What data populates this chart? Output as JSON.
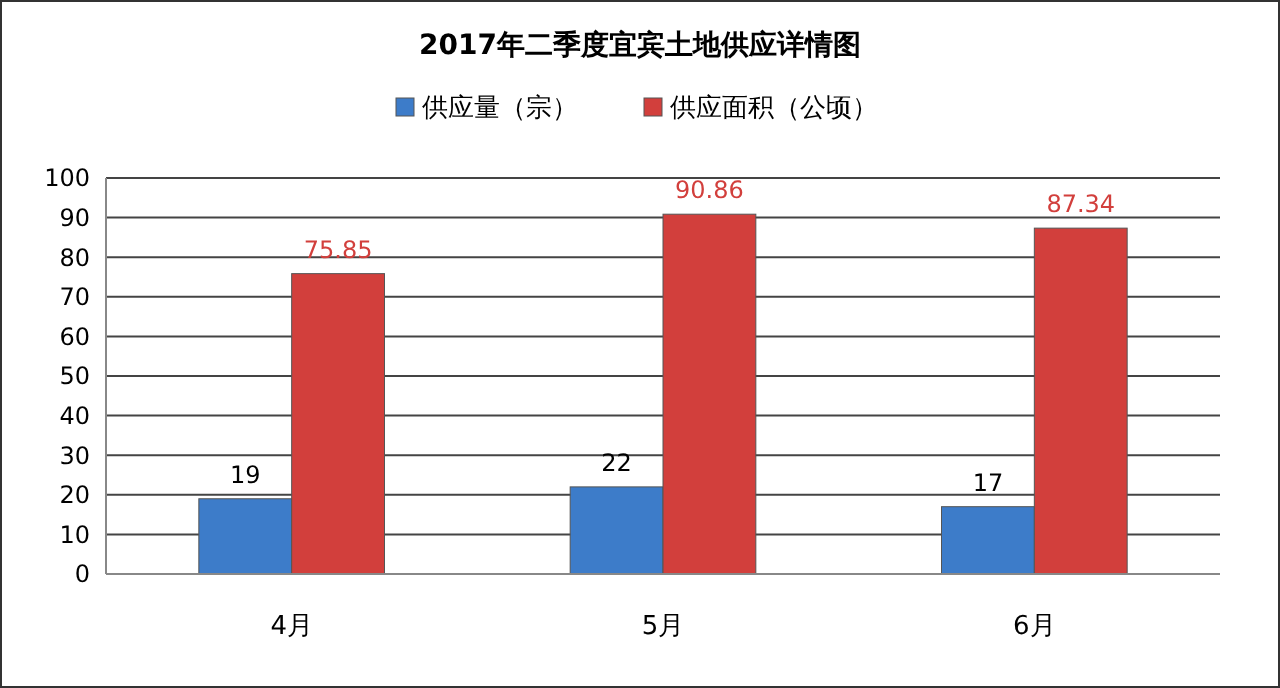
{
  "chart_data": {
    "type": "bar",
    "title": "2017年二季度宜宾土地供应详情图",
    "categories": [
      "4月",
      "5月",
      "6月"
    ],
    "series": [
      {
        "name": "供应量（宗）",
        "color": "#3d7cc9",
        "values": [
          19,
          22,
          17
        ]
      },
      {
        "name": "供应面积（公顷）",
        "color": "#d23f3c",
        "values": [
          75.85,
          90.86,
          87.34
        ]
      }
    ],
    "ylim": [
      0,
      100
    ],
    "yticks": [
      0,
      10,
      20,
      30,
      40,
      50,
      60,
      70,
      80,
      90,
      100
    ],
    "grid": "y",
    "legend": "top",
    "data_labels": true
  }
}
